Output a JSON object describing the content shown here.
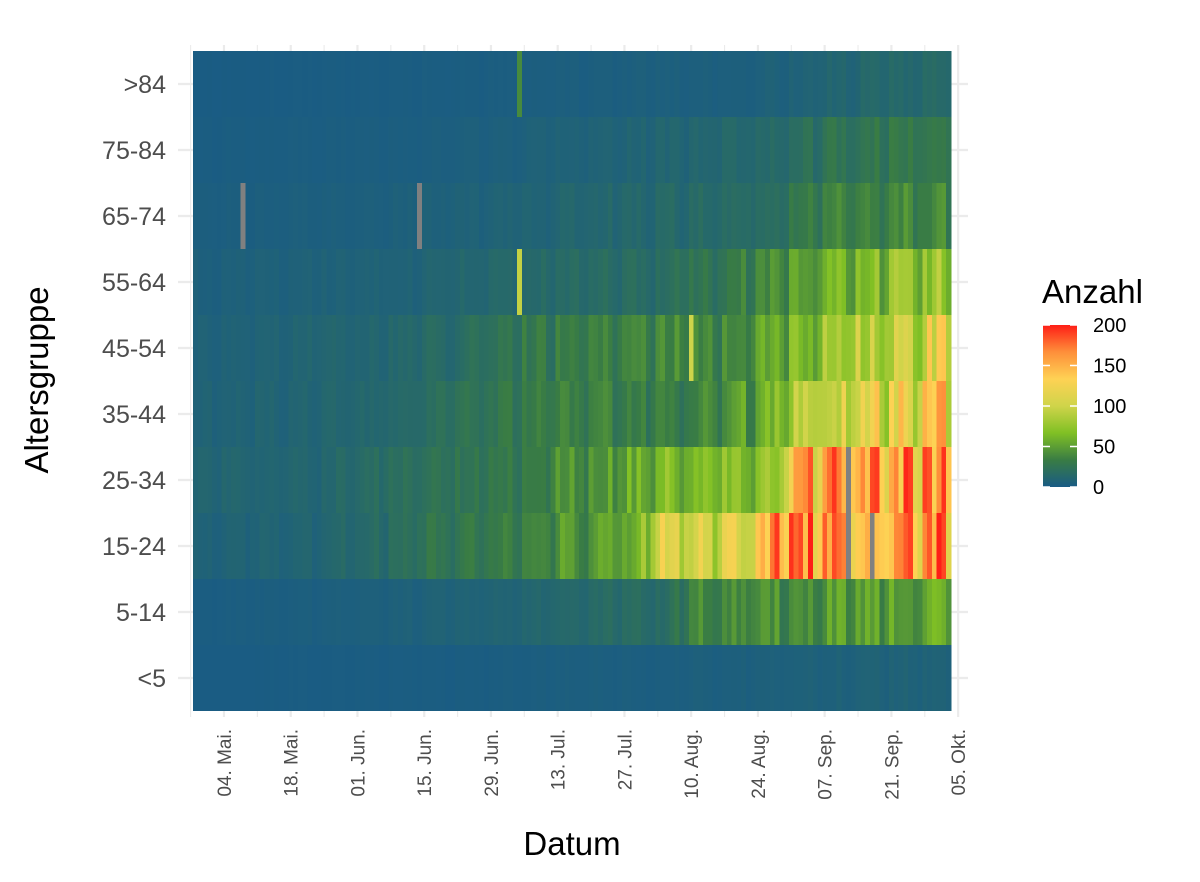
{
  "chart_data": {
    "type": "heatmap",
    "title": "",
    "xlabel": "Datum",
    "ylabel": "Altersgruppe",
    "x_range": [
      "2020-04-28",
      "2020-10-03"
    ],
    "x_ticks": [
      {
        "date": "2020-05-04",
        "label": "04. Mai."
      },
      {
        "date": "2020-05-18",
        "label": "18. Mai."
      },
      {
        "date": "2020-06-01",
        "label": "01. Jun."
      },
      {
        "date": "2020-06-15",
        "label": "15. Jun."
      },
      {
        "date": "2020-06-29",
        "label": "29. Jun."
      },
      {
        "date": "2020-07-13",
        "label": "13. Jul."
      },
      {
        "date": "2020-07-27",
        "label": "27. Jul."
      },
      {
        "date": "2020-08-10",
        "label": "10. Aug."
      },
      {
        "date": "2020-08-24",
        "label": "24. Aug."
      },
      {
        "date": "2020-09-07",
        "label": "07. Sep."
      },
      {
        "date": "2020-09-21",
        "label": "21. Sep."
      },
      {
        "date": "2020-10-05",
        "label": "05. Okt."
      }
    ],
    "y_categories": [
      "<5",
      "5-14",
      "15-24",
      "25-34",
      "35-44",
      "45-54",
      "55-64",
      "65-74",
      "75-84",
      ">84"
    ],
    "legend": {
      "title": "Anzahl",
      "position": "right",
      "ticks": [
        0,
        50,
        100,
        150,
        200
      ],
      "range": [
        0,
        200
      ],
      "colors": [
        "#195b85",
        "#397c44",
        "#80c024",
        "#cfd44a",
        "#fed254",
        "#fe8f3a",
        "#fe1e16"
      ]
    },
    "na_color": "#808080",
    "grid": true,
    "series": [
      {
        "name": "<5",
        "knots": [
          [
            0,
            1
          ],
          [
            50,
            2
          ],
          [
            71,
            3
          ],
          [
            80,
            4
          ],
          [
            98,
            3
          ],
          [
            105,
            5
          ],
          [
            113,
            4
          ],
          [
            120,
            6
          ],
          [
            158,
            8
          ]
        ]
      },
      {
        "name": "5-14",
        "knots": [
          [
            0,
            2
          ],
          [
            30,
            4
          ],
          [
            49,
            7
          ],
          [
            56,
            8
          ],
          [
            71,
            11
          ],
          [
            76,
            14
          ],
          [
            83,
            16
          ],
          [
            98,
            18
          ],
          [
            105,
            40
          ],
          [
            120,
            45
          ],
          [
            158,
            55
          ]
        ]
      },
      {
        "name": "15-24",
        "knots": [
          [
            0,
            8
          ],
          [
            25,
            10
          ],
          [
            42,
            20
          ],
          [
            50,
            28
          ],
          [
            60,
            32
          ],
          [
            80,
            50
          ],
          [
            92,
            55
          ],
          [
            98,
            115
          ],
          [
            106,
            110
          ],
          [
            115,
            112
          ],
          [
            124,
            180
          ],
          [
            145,
            170
          ],
          [
            158,
            190
          ]
        ]
      },
      {
        "name": "25-34",
        "knots": [
          [
            0,
            10
          ],
          [
            24,
            12
          ],
          [
            45,
            22
          ],
          [
            54,
            26
          ],
          [
            66,
            30
          ],
          [
            73,
            42
          ],
          [
            85,
            48
          ],
          [
            101,
            70
          ],
          [
            107,
            68
          ],
          [
            111,
            72
          ],
          [
            121,
            75
          ],
          [
            128,
            160
          ],
          [
            145,
            165
          ],
          [
            158,
            160
          ]
        ]
      },
      {
        "name": "35-44",
        "knots": [
          [
            0,
            8
          ],
          [
            35,
            12
          ],
          [
            54,
            22
          ],
          [
            66,
            30
          ],
          [
            73,
            33
          ],
          [
            84,
            35
          ],
          [
            98,
            36
          ],
          [
            112,
            45
          ],
          [
            121,
            60
          ],
          [
            128,
            100
          ],
          [
            145,
            120
          ],
          [
            158,
            140
          ]
        ]
      },
      {
        "name": "45-54",
        "knots": [
          [
            0,
            7
          ],
          [
            40,
            12
          ],
          [
            58,
            20
          ],
          [
            69,
            30
          ],
          [
            80,
            33
          ],
          [
            101,
            40
          ],
          [
            113,
            42
          ],
          [
            122,
            55
          ],
          [
            133,
            80
          ],
          [
            145,
            100
          ],
          [
            158,
            120
          ]
        ]
      },
      {
        "name": "55-64",
        "knots": [
          [
            0,
            5
          ],
          [
            40,
            8
          ],
          [
            66,
            14
          ],
          [
            84,
            18
          ],
          [
            98,
            20
          ],
          [
            112,
            30
          ],
          [
            126,
            55
          ],
          [
            142,
            70
          ],
          [
            158,
            80
          ]
        ]
      },
      {
        "name": "65-74",
        "knots": [
          [
            0,
            3
          ],
          [
            40,
            5
          ],
          [
            66,
            8
          ],
          [
            84,
            12
          ],
          [
            105,
            16
          ],
          [
            119,
            20
          ],
          [
            130,
            35
          ],
          [
            145,
            40
          ],
          [
            158,
            42
          ]
        ]
      },
      {
        "name": "75-84",
        "knots": [
          [
            0,
            2
          ],
          [
            42,
            3
          ],
          [
            66,
            5
          ],
          [
            84,
            8
          ],
          [
            105,
            11
          ],
          [
            119,
            15
          ],
          [
            133,
            26
          ],
          [
            158,
            32
          ]
        ]
      },
      {
        "name": ">84",
        "knots": [
          [
            0,
            1
          ],
          [
            42,
            2
          ],
          [
            70,
            3
          ],
          [
            91,
            4
          ],
          [
            112,
            5
          ],
          [
            126,
            7
          ],
          [
            138,
            12
          ],
          [
            158,
            15
          ]
        ]
      }
    ],
    "highlights": [
      {
        "row": "55-64",
        "date": "2020-07-05",
        "value": 95
      },
      {
        "row": "45-54",
        "date": "2020-08-10",
        "value": 100
      },
      {
        "row": ">84",
        "date": "2020-07-05",
        "value": 40
      }
    ],
    "missing": [
      {
        "row": "65-74",
        "date": "2020-05-08"
      },
      {
        "row": "65-74",
        "date": "2020-06-14"
      },
      {
        "row": "25-34",
        "date": "2020-09-12"
      },
      {
        "row": "15-24",
        "date": "2020-09-12"
      },
      {
        "row": "15-24",
        "date": "2020-09-17"
      }
    ]
  }
}
